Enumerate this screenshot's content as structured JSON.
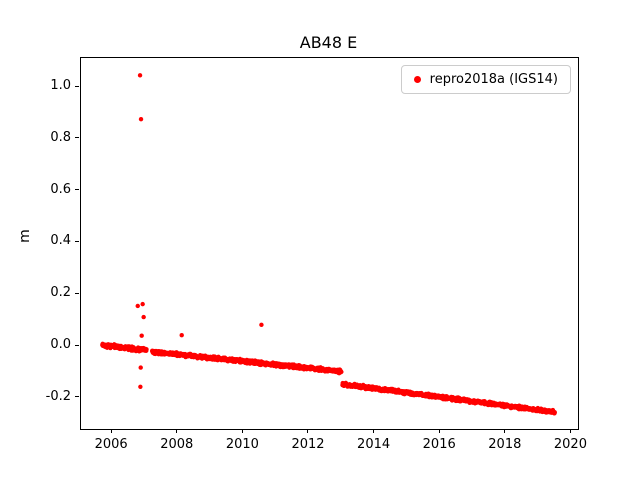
{
  "chart_data": {
    "type": "scatter",
    "title": "AB48 E",
    "xlabel": "",
    "ylabel": "m",
    "xlim": [
      2005.05,
      2020.2
    ],
    "ylim": [
      -0.32,
      1.112
    ],
    "xtick_values": [
      2006,
      2008,
      2010,
      2012,
      2014,
      2016,
      2018,
      2020
    ],
    "xtick_labels": [
      "2006",
      "2008",
      "2010",
      "2012",
      "2014",
      "2016",
      "2018",
      "2020"
    ],
    "ytick_values": [
      -0.2,
      0.0,
      0.2,
      0.4,
      0.6,
      0.8,
      1.0
    ],
    "ytick_labels": [
      "-0.2",
      "0.0",
      "0.2",
      "0.4",
      "0.6",
      "0.8",
      "1.0"
    ],
    "grid": false,
    "legend_position": "upper right",
    "legend": [
      {
        "label": "repro2018a (IGS14)",
        "color": "#ff0000"
      }
    ],
    "seed": 42,
    "series": [
      {
        "name": "repro2018a (IGS14)",
        "color": "#ff0000",
        "marker_px": 2.2,
        "trend_segments": [
          {
            "x_start": 2005.7,
            "x_end": 2007.05,
            "y_start": 0.004,
            "y_end": -0.016,
            "noise": 0.009,
            "step_days": 3
          },
          {
            "x_start": 2007.22,
            "x_end": 2012.99,
            "y_start": -0.022,
            "y_end": -0.098,
            "noise": 0.008,
            "step_days": 3
          },
          {
            "x_start": 2013.02,
            "x_end": 2019.5,
            "y_start": -0.147,
            "y_end": -0.255,
            "noise": 0.008,
            "step_days": 3
          }
        ],
        "outliers": [
          [
            2006.85,
            1.045
          ],
          [
            2006.88,
            0.876
          ],
          [
            2006.78,
            0.155
          ],
          [
            2006.93,
            0.162
          ],
          [
            2006.96,
            0.112
          ],
          [
            2006.9,
            0.04
          ],
          [
            2006.87,
            -0.083
          ],
          [
            2006.86,
            -0.157
          ],
          [
            2008.12,
            0.042
          ],
          [
            2010.55,
            0.082
          ]
        ]
      }
    ]
  }
}
